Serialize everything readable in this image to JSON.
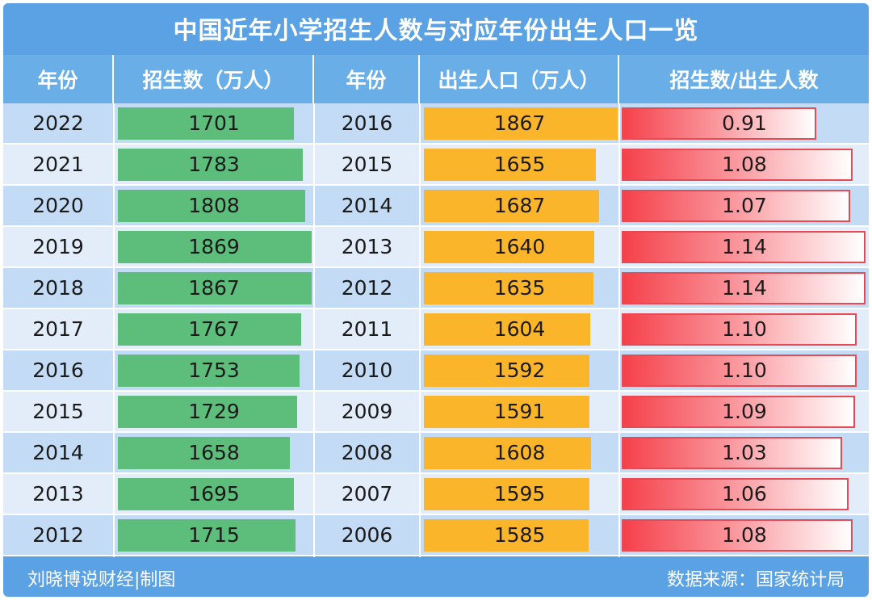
{
  "title": "中国近年小学招生人数与对应年份出生人口一览",
  "headers": {
    "col1": "年份",
    "col2": "招生数（万人）",
    "col3": "年份",
    "col4": "出生人口（万人）",
    "col5": "招生数/出生人数"
  },
  "footer": {
    "left": "刘晓博说财经|制图",
    "right": "数据来源：国家统计局"
  },
  "watermark": "刘晓博说财经",
  "colors": {
    "enrollment_bar": "#5dbe7c",
    "birth_bar": "#fbb52a",
    "ratio_bar": "#f5414b",
    "header_bg": "#5aa2e4"
  },
  "chart_data": {
    "type": "table",
    "rows": [
      {
        "enroll_year": "2022",
        "enrollment": "1701",
        "birth_year": "2016",
        "births": "1867",
        "ratio": "0.91"
      },
      {
        "enroll_year": "2021",
        "enrollment": "1783",
        "birth_year": "2015",
        "births": "1655",
        "ratio": "1.08"
      },
      {
        "enroll_year": "2020",
        "enrollment": "1808",
        "birth_year": "2014",
        "births": "1687",
        "ratio": "1.07"
      },
      {
        "enroll_year": "2019",
        "enrollment": "1869",
        "birth_year": "2013",
        "births": "1640",
        "ratio": "1.14"
      },
      {
        "enroll_year": "2018",
        "enrollment": "1867",
        "birth_year": "2012",
        "births": "1635",
        "ratio": "1.14"
      },
      {
        "enroll_year": "2017",
        "enrollment": "1767",
        "birth_year": "2011",
        "births": "1604",
        "ratio": "1.10"
      },
      {
        "enroll_year": "2016",
        "enrollment": "1753",
        "birth_year": "2010",
        "births": "1592",
        "ratio": "1.10"
      },
      {
        "enroll_year": "2015",
        "enrollment": "1729",
        "birth_year": "2009",
        "births": "1591",
        "ratio": "1.09"
      },
      {
        "enroll_year": "2014",
        "enrollment": "1658",
        "birth_year": "2008",
        "births": "1608",
        "ratio": "1.03"
      },
      {
        "enroll_year": "2013",
        "enrollment": "1695",
        "birth_year": "2007",
        "births": "1595",
        "ratio": "1.06"
      },
      {
        "enroll_year": "2012",
        "enrollment": "1715",
        "birth_year": "2006",
        "births": "1585",
        "ratio": "1.08"
      }
    ],
    "bar_scales": {
      "enrollment_max": 1869,
      "births_max": 1867,
      "ratio_max": 1.14
    }
  }
}
